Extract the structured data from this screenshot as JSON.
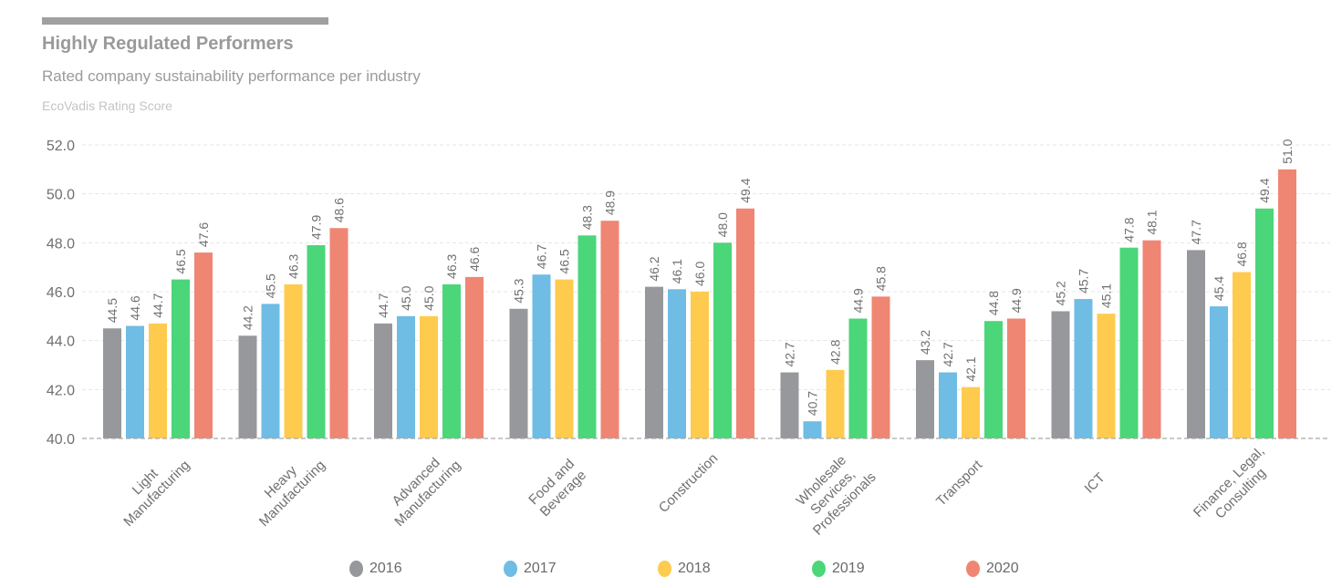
{
  "header": {
    "title": "Highly Regulated Performers",
    "subtitle": "Rated company sustainability performance per industry",
    "unit_label": "EcoVadis Rating Score"
  },
  "chart_data": {
    "type": "bar",
    "title": "Highly Regulated Performers",
    "subtitle": "Rated company sustainability performance per industry",
    "xlabel": "",
    "ylabel": "EcoVadis Rating Score",
    "ylim": [
      40,
      52
    ],
    "yticks": [
      "40.0",
      "42.0",
      "44.0",
      "46.0",
      "48.0",
      "50.0",
      "52.0"
    ],
    "grid": true,
    "legend_position": "bottom",
    "categories": [
      [
        "Light",
        "Manufacturing"
      ],
      [
        "Heavy",
        "Manufacturing"
      ],
      [
        "Advanced",
        "Manufacturing"
      ],
      [
        "Food and",
        "Beverage"
      ],
      [
        "Construction"
      ],
      [
        "Wholesale",
        "Services,",
        "Professionals"
      ],
      [
        "Transport"
      ],
      [
        "ICT"
      ],
      [
        "Finance, Legal,",
        "Consulting"
      ]
    ],
    "series": [
      {
        "name": "2016",
        "color": "#97989c",
        "values": [
          44.5,
          44.2,
          44.7,
          45.3,
          46.2,
          42.7,
          43.2,
          45.2,
          47.7
        ]
      },
      {
        "name": "2017",
        "color": "#6fbce4",
        "values": [
          44.6,
          45.5,
          45.0,
          46.7,
          46.1,
          40.7,
          42.7,
          45.7,
          45.4
        ]
      },
      {
        "name": "2018",
        "color": "#fecb4e",
        "values": [
          44.7,
          46.3,
          45.0,
          46.5,
          46.0,
          42.8,
          42.1,
          45.1,
          46.8
        ]
      },
      {
        "name": "2019",
        "color": "#4bd679",
        "values": [
          46.5,
          47.9,
          46.3,
          48.3,
          48.0,
          44.9,
          44.8,
          47.8,
          49.4
        ]
      },
      {
        "name": "2020",
        "color": "#ef8673",
        "values": [
          47.6,
          48.6,
          46.6,
          48.9,
          49.4,
          45.8,
          44.9,
          48.1,
          51.0
        ]
      }
    ]
  }
}
